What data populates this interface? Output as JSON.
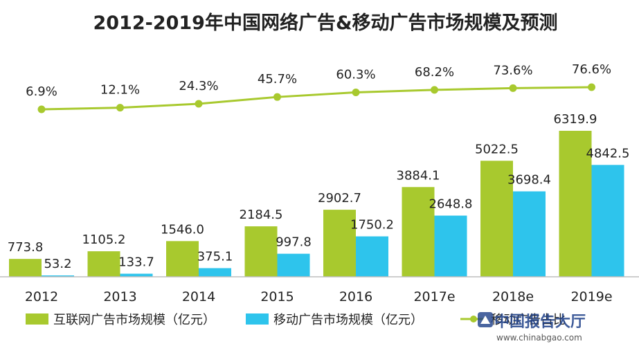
{
  "chart_data": {
    "type": "bar",
    "title": "2012-2019年中国网络广告&移动广告市场规模及预测",
    "categories": [
      "2012",
      "2013",
      "2014",
      "2015",
      "2016",
      "2017e",
      "2018e",
      "2019e"
    ],
    "series": [
      {
        "name": "互联网广告市场规模（亿元）",
        "type": "bar",
        "color": "#a8c92e",
        "values": [
          773.8,
          1105.2,
          1546.0,
          2184.5,
          2902.7,
          3884.1,
          5022.5,
          6319.9
        ],
        "labels": [
          "773.8",
          "1105.2",
          "1546.0",
          "2184.5",
          "2902.7",
          "3884.1",
          "5022.5",
          "6319.9"
        ]
      },
      {
        "name": "移动广告市场规模（亿元）",
        "type": "bar",
        "color": "#2ec4ec",
        "values": [
          53.2,
          133.7,
          375.1,
          997.8,
          1750.2,
          2648.8,
          3698.4,
          4842.5
        ],
        "labels": [
          "53.2",
          "133.7",
          "375.1",
          "997.8",
          "1750.2",
          "2648.8",
          "3698.4",
          "4842.5"
        ]
      },
      {
        "name": "移动广告占比",
        "type": "line",
        "color": "#a8c92e",
        "values": [
          6.9,
          12.1,
          24.3,
          45.7,
          60.3,
          68.2,
          73.6,
          76.6
        ],
        "labels": [
          "6.9%",
          "12.1%",
          "24.3%",
          "45.7%",
          "60.3%",
          "68.2%",
          "73.6%",
          "76.6%"
        ]
      }
    ],
    "grid": false,
    "legend": "bottom"
  },
  "watermark": {
    "brand": "中国报告大厅",
    "url": "www.chinabgao.com"
  }
}
